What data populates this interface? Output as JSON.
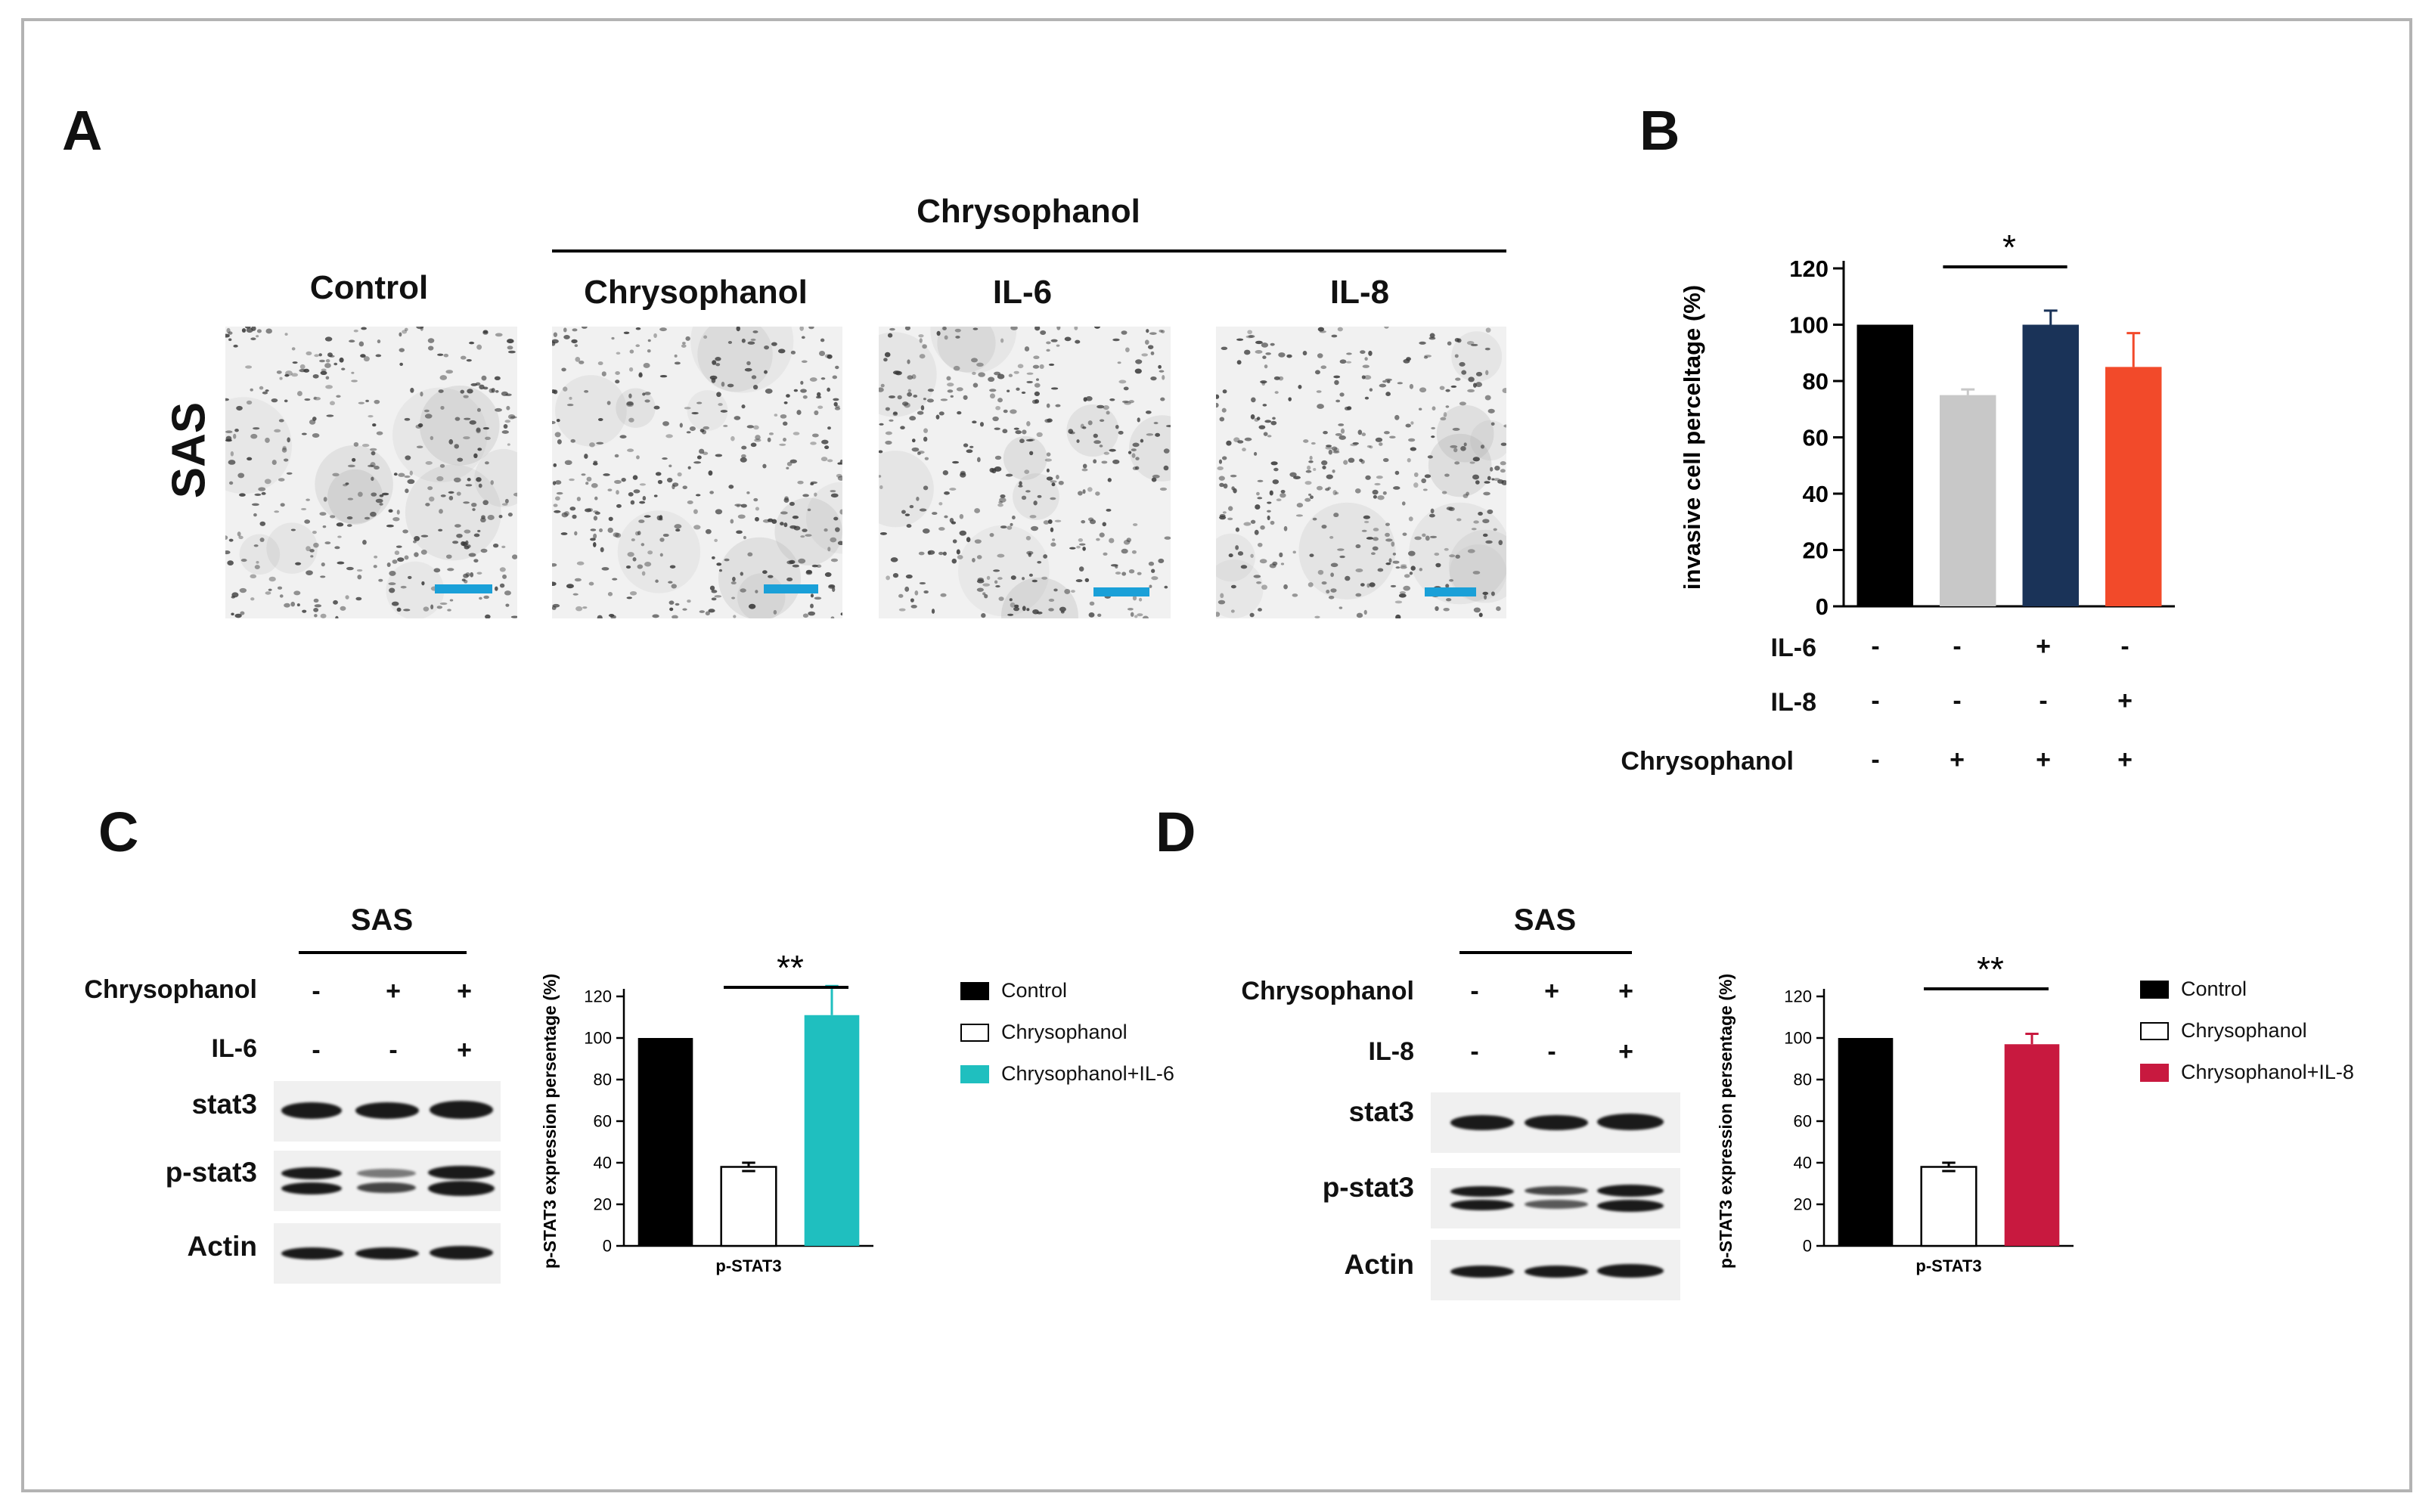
{
  "panels": {
    "a": "A",
    "b": "B",
    "c": "C",
    "d": "D"
  },
  "panel_a": {
    "row_label": "SAS",
    "group_label": "Chrysophanol",
    "images": [
      {
        "label": "Control"
      },
      {
        "label": "Chrysophanol"
      },
      {
        "label": "IL-6"
      },
      {
        "label": "IL-8"
      }
    ],
    "scalebar_color": "#1aa0d8"
  },
  "panel_b": {
    "treatment_rows": [
      {
        "label": "IL-6",
        "signs": [
          "-",
          "-",
          "+",
          "-"
        ]
      },
      {
        "label": "IL-8",
        "signs": [
          "-",
          "-",
          "-",
          "+"
        ]
      },
      {
        "label": "Chrysophanol",
        "signs": [
          "-",
          "+",
          "+",
          "+"
        ]
      }
    ]
  },
  "panel_c": {
    "blot": {
      "title": "SAS",
      "treatments": [
        {
          "label": "Chrysophanol",
          "signs": [
            "-",
            "+",
            "+"
          ]
        },
        {
          "label": "IL-6",
          "signs": [
            "-",
            "-",
            "+"
          ]
        }
      ],
      "rows": [
        "stat3",
        "p-stat3",
        "Actin"
      ]
    },
    "legend": [
      {
        "label": "Control",
        "color": "#000000"
      },
      {
        "label": "Chrysophanol",
        "color": "#ffffff"
      },
      {
        "label": "Chrysophanol+IL-6",
        "color": "#1fbfbf"
      }
    ]
  },
  "panel_d": {
    "blot": {
      "title": "SAS",
      "treatments": [
        {
          "label": "Chrysophanol",
          "signs": [
            "-",
            "+",
            "+"
          ]
        },
        {
          "label": "IL-8",
          "signs": [
            "-",
            "-",
            "+"
          ]
        }
      ],
      "rows": [
        "stat3",
        "p-stat3",
        "Actin"
      ]
    },
    "legend": [
      {
        "label": "Control",
        "color": "#000000"
      },
      {
        "label": "Chrysophanol",
        "color": "#ffffff"
      },
      {
        "label": "Chrysophanol+IL-8",
        "color": "#c8193f"
      }
    ]
  },
  "chart_data": [
    {
      "id": "B",
      "type": "bar",
      "ylabel": "invasive cell perceltage (%)",
      "ylim": [
        0,
        120
      ],
      "yticks": [
        0,
        20,
        40,
        60,
        80,
        100,
        120
      ],
      "categories": [
        "Control",
        "Chrysophanol",
        "Chrysophanol+IL-6",
        "Chrysophanol+IL-8"
      ],
      "values": [
        100,
        75,
        100,
        85
      ],
      "errors": [
        0,
        2,
        5,
        12
      ],
      "colors": [
        "#000000",
        "#c8c8c8",
        "#1a3358",
        "#f24a2a"
      ],
      "significance": "*",
      "significance_between": [
        1,
        2
      ]
    },
    {
      "id": "C",
      "type": "bar",
      "ylabel": "p-STAT3 expression persentage (%)",
      "xlabel": "p-STAT3",
      "ylim": [
        0,
        120
      ],
      "yticks": [
        0,
        20,
        40,
        60,
        80,
        100,
        120
      ],
      "categories": [
        "Control",
        "Chrysophanol",
        "Chrysophanol+IL-6"
      ],
      "values": [
        100,
        38,
        111
      ],
      "errors": [
        0,
        2,
        14
      ],
      "colors": [
        "#000000",
        "#ffffff",
        "#1fbfbf"
      ],
      "significance": "**",
      "significance_between": [
        1,
        2
      ]
    },
    {
      "id": "D",
      "type": "bar",
      "ylabel": "p-STAT3 expression persentage (%)",
      "xlabel": "p-STAT3",
      "ylim": [
        0,
        120
      ],
      "yticks": [
        0,
        20,
        40,
        60,
        80,
        100,
        120
      ],
      "categories": [
        "Control",
        "Chrysophanol",
        "Chrysophanol+IL-8"
      ],
      "values": [
        100,
        38,
        97
      ],
      "errors": [
        0,
        2,
        5
      ],
      "colors": [
        "#000000",
        "#ffffff",
        "#c8193f"
      ],
      "significance": "**",
      "significance_between": [
        1,
        2
      ]
    }
  ]
}
